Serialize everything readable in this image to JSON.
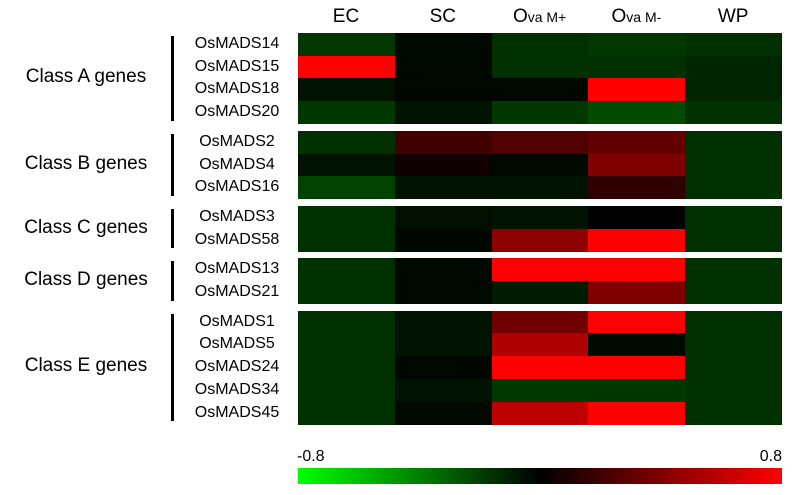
{
  "chart_data": {
    "type": "heatmap",
    "columns": [
      {
        "main": "EC",
        "sub": ""
      },
      {
        "main": "SC",
        "sub": ""
      },
      {
        "main": "O",
        "sub": "va M+"
      },
      {
        "main": "O",
        "sub": "va M-"
      },
      {
        "main": "WP",
        "sub": ""
      }
    ],
    "groups": [
      {
        "label": "Class A genes",
        "genes": [
          "OsMADS14",
          "OsMADS15",
          "OsMADS18",
          "OsMADS20"
        ]
      },
      {
        "label": "Class B genes",
        "genes": [
          "OsMADS2",
          "OsMADS4",
          "OsMADS16"
        ]
      },
      {
        "label": "Class C genes",
        "genes": [
          "OsMADS3",
          "OsMADS58"
        ]
      },
      {
        "label": "Class D genes",
        "genes": [
          "OsMADS13",
          "OsMADS21"
        ]
      },
      {
        "label": "Class E genes",
        "genes": [
          "OsMADS1",
          "OsMADS5",
          "OsMADS24",
          "OsMADS34",
          "OsMADS45"
        ]
      }
    ],
    "values": [
      [
        -0.3,
        -0.05,
        -0.25,
        -0.3,
        -0.25
      ],
      [
        0.8,
        -0.03,
        -0.25,
        -0.25,
        -0.2
      ],
      [
        -0.1,
        -0.03,
        -0.03,
        0.8,
        -0.2
      ],
      [
        -0.3,
        -0.1,
        -0.3,
        -0.4,
        -0.25
      ],
      [
        -0.25,
        0.2,
        0.25,
        0.3,
        -0.25
      ],
      [
        -0.1,
        0.05,
        -0.05,
        0.4,
        -0.25
      ],
      [
        -0.35,
        -0.1,
        -0.1,
        0.15,
        -0.25
      ],
      [
        -0.25,
        -0.08,
        -0.1,
        0.0,
        -0.25
      ],
      [
        -0.25,
        -0.03,
        0.45,
        0.8,
        -0.25
      ],
      [
        -0.25,
        -0.05,
        0.8,
        0.8,
        -0.25
      ],
      [
        -0.25,
        -0.05,
        -0.15,
        0.4,
        -0.25
      ],
      [
        -0.25,
        -0.1,
        0.35,
        0.8,
        -0.25
      ],
      [
        -0.25,
        -0.1,
        0.55,
        -0.05,
        -0.25
      ],
      [
        -0.25,
        -0.03,
        0.8,
        0.8,
        -0.25
      ],
      [
        -0.25,
        -0.1,
        -0.3,
        -0.3,
        -0.25
      ],
      [
        -0.25,
        -0.05,
        0.6,
        0.8,
        -0.25
      ]
    ],
    "colorbar": {
      "min": -0.8,
      "max": 0.8,
      "min_label": "-0.8",
      "max_label": "0.8",
      "low_color": "#00ff00",
      "mid_color": "#000000",
      "high_color": "#ff0000"
    }
  }
}
